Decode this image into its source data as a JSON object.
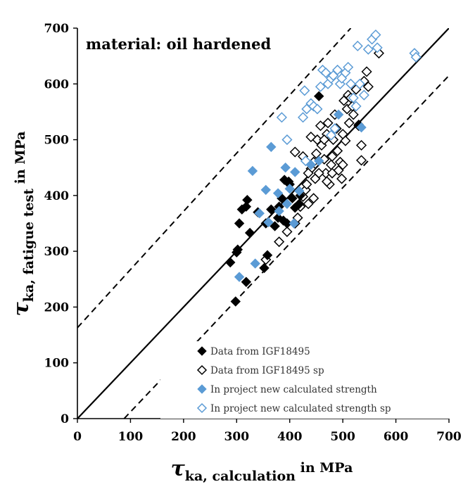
{
  "chart_data": {
    "type": "scatter",
    "title": "",
    "annotation": "material: oil hardened",
    "xlabel": {
      "symbol": "τ",
      "subscript": "ka, calculation",
      "unit": " in MPa"
    },
    "ylabel": {
      "symbol": "τ",
      "subscript": "ka, fatigue test",
      "unit": " in MPa"
    },
    "xlim": [
      0,
      700
    ],
    "ylim": [
      0,
      700
    ],
    "xticks": [
      0,
      100,
      200,
      300,
      400,
      500,
      600,
      700
    ],
    "yticks": [
      0,
      100,
      200,
      300,
      400,
      500,
      600,
      700
    ],
    "grid": false,
    "legend_position": "bottom-right",
    "reference_lines": [
      {
        "kind": "solid",
        "description": "y = x",
        "points": [
          [
            0,
            0
          ],
          [
            700,
            700
          ]
        ]
      },
      {
        "kind": "dashed",
        "description": "upper scatter band",
        "points": [
          [
            0,
            163
          ],
          [
            515,
            700
          ]
        ]
      },
      {
        "kind": "dashed",
        "description": "lower scatter band",
        "points": [
          [
            88,
            0
          ],
          [
            700,
            615
          ]
        ]
      }
    ],
    "series": [
      {
        "name": "Data from IGF18495",
        "marker": "diamond-filled",
        "color": "#000000",
        "points": [
          [
            298,
            210
          ],
          [
            288,
            280
          ],
          [
            300,
            298
          ],
          [
            302,
            303
          ],
          [
            318,
            245
          ],
          [
            325,
            333
          ],
          [
            305,
            350
          ],
          [
            310,
            375
          ],
          [
            320,
            392
          ],
          [
            318,
            380
          ],
          [
            340,
            370
          ],
          [
            352,
            270
          ],
          [
            358,
            293
          ],
          [
            355,
            350
          ],
          [
            365,
            375
          ],
          [
            372,
            345
          ],
          [
            378,
            360
          ],
          [
            380,
            380
          ],
          [
            388,
            355
          ],
          [
            395,
            350
          ],
          [
            390,
            428
          ],
          [
            400,
            420
          ],
          [
            405,
            395
          ],
          [
            410,
            378
          ],
          [
            418,
            385
          ],
          [
            420,
            400
          ],
          [
            455,
            578
          ],
          [
            530,
            527
          ],
          [
            398,
            425
          ],
          [
            385,
            395
          ]
        ]
      },
      {
        "name": "Data from IGF18495 sp",
        "marker": "diamond-open",
        "color": "#000000",
        "points": [
          [
            380,
            317
          ],
          [
            355,
            285
          ],
          [
            395,
            335
          ],
          [
            410,
            350
          ],
          [
            415,
            360
          ],
          [
            420,
            380
          ],
          [
            425,
            398
          ],
          [
            430,
            410
          ],
          [
            432,
            420
          ],
          [
            435,
            385
          ],
          [
            440,
            448
          ],
          [
            445,
            460
          ],
          [
            448,
            430
          ],
          [
            450,
            475
          ],
          [
            452,
            500
          ],
          [
            458,
            525
          ],
          [
            460,
            490
          ],
          [
            465,
            465
          ],
          [
            468,
            440
          ],
          [
            470,
            510
          ],
          [
            472,
            530
          ],
          [
            475,
            420
          ],
          [
            478,
            455
          ],
          [
            480,
            470
          ],
          [
            482,
            500
          ],
          [
            485,
            545
          ],
          [
            488,
            520
          ],
          [
            490,
            480
          ],
          [
            492,
            445
          ],
          [
            495,
            460
          ],
          [
            498,
            430
          ],
          [
            500,
            510
          ],
          [
            502,
            570
          ],
          [
            505,
            498
          ],
          [
            508,
            555
          ],
          [
            510,
            580
          ],
          [
            512,
            530
          ],
          [
            515,
            575
          ],
          [
            518,
            560
          ],
          [
            520,
            545
          ],
          [
            525,
            590
          ],
          [
            530,
            525
          ],
          [
            535,
            490
          ],
          [
            535,
            463
          ],
          [
            540,
            605
          ],
          [
            545,
            622
          ],
          [
            548,
            595
          ],
          [
            568,
            655
          ],
          [
            440,
            505
          ],
          [
            455,
            440
          ],
          [
            425,
            470
          ],
          [
            435,
            440
          ],
          [
            465,
            500
          ],
          [
            410,
            478
          ],
          [
            445,
            395
          ],
          [
            470,
            425
          ],
          [
            480,
            440
          ],
          [
            500,
            455
          ]
        ]
      },
      {
        "name": "In project new calculated strength",
        "marker": "diamond-filled",
        "color": "#5B9BD5",
        "points": [
          [
            305,
            254
          ],
          [
            335,
            278
          ],
          [
            330,
            444
          ],
          [
            343,
            368
          ],
          [
            355,
            410
          ],
          [
            360,
            352
          ],
          [
            365,
            487
          ],
          [
            378,
            404
          ],
          [
            380,
            372
          ],
          [
            392,
            450
          ],
          [
            395,
            385
          ],
          [
            400,
            412
          ],
          [
            408,
            350
          ],
          [
            410,
            442
          ],
          [
            418,
            408
          ],
          [
            440,
            455
          ],
          [
            455,
            462
          ],
          [
            492,
            545
          ],
          [
            535,
            522
          ]
        ]
      },
      {
        "name": "In project new calculated strength sp",
        "marker": "diamond-open",
        "color": "#5B9BD5",
        "points": [
          [
            385,
            540
          ],
          [
            395,
            500
          ],
          [
            425,
            540
          ],
          [
            428,
            588
          ],
          [
            432,
            555
          ],
          [
            440,
            565
          ],
          [
            445,
            560
          ],
          [
            452,
            555
          ],
          [
            458,
            595
          ],
          [
            462,
            625
          ],
          [
            468,
            620
          ],
          [
            472,
            600
          ],
          [
            478,
            610
          ],
          [
            482,
            615
          ],
          [
            485,
            520
          ],
          [
            490,
            625
          ],
          [
            495,
            600
          ],
          [
            498,
            610
          ],
          [
            505,
            620
          ],
          [
            510,
            630
          ],
          [
            515,
            600
          ],
          [
            520,
            575
          ],
          [
            525,
            560
          ],
          [
            528,
            668
          ],
          [
            532,
            600
          ],
          [
            540,
            580
          ],
          [
            548,
            662
          ],
          [
            555,
            680
          ],
          [
            562,
            688
          ],
          [
            565,
            665
          ],
          [
            635,
            655
          ],
          [
            638,
            648
          ],
          [
            478,
            508
          ],
          [
            430,
            462
          ]
        ]
      }
    ]
  }
}
